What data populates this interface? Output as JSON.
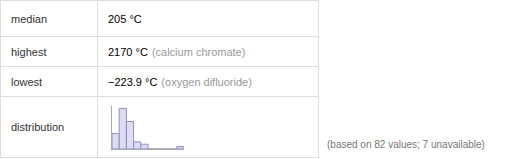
{
  "table": {
    "rows": [
      {
        "label": "median",
        "value": "205 °C"
      },
      {
        "label": "highest",
        "value": "2170 °C",
        "note": "(calcium chromate)"
      },
      {
        "label": "lowest",
        "value": "−223.9 °C",
        "note": "(oxygen difluoride)"
      },
      {
        "label": "distribution"
      }
    ]
  },
  "chart_data": {
    "type": "histogram",
    "bins": [
      -250,
      0,
      250,
      500,
      750,
      1000,
      1250,
      1500,
      1750,
      2000,
      2250
    ],
    "values": [
      13,
      34,
      23,
      6,
      4,
      0,
      0,
      0,
      0,
      2
    ],
    "xlim": [
      -250,
      2250
    ],
    "ylim": [
      0,
      36
    ],
    "xticks": [],
    "yticks": [],
    "tick_labels": false,
    "color": "#dcdcf2"
  },
  "footnote": "(based on 82 values; 7 unavailable)"
}
